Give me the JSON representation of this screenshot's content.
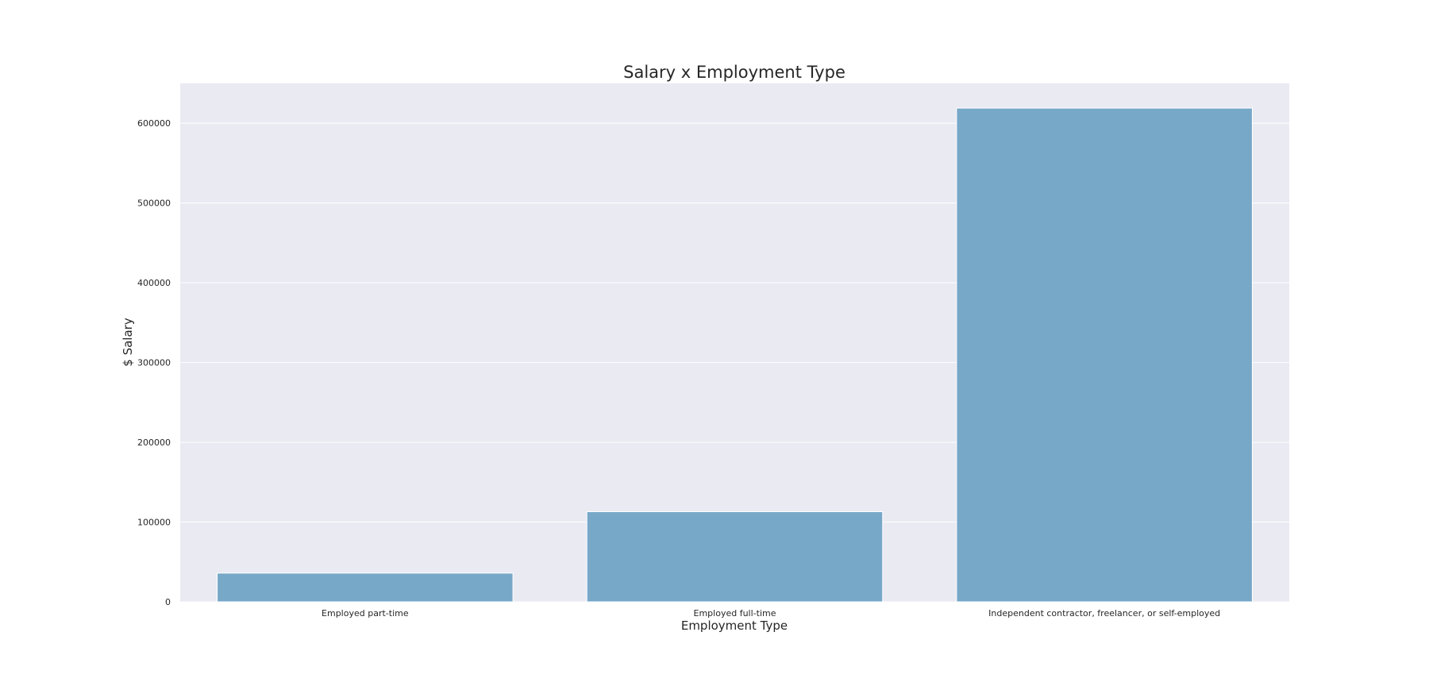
{
  "chart_data": {
    "type": "bar",
    "title": "Salary x Employment Type",
    "xlabel": "Employment Type",
    "ylabel": "$ Salary",
    "categories": [
      "Employed part-time",
      "Employed full-time",
      "Independent contractor, freelancer, or self-employed"
    ],
    "values": [
      36000,
      113000,
      619000
    ],
    "ylim": [
      0,
      650000
    ],
    "yticks": [
      0,
      100000,
      200000,
      300000,
      400000,
      500000,
      600000
    ],
    "ytick_labels": [
      "0",
      "100000",
      "200000",
      "300000",
      "400000",
      "500000",
      "600000"
    ],
    "grid": true,
    "legend": "none",
    "colors": {
      "bar": "#77a8c8",
      "plot_background": "#eaeaf2",
      "gridline": "#ffffff",
      "text": "#262626"
    }
  }
}
